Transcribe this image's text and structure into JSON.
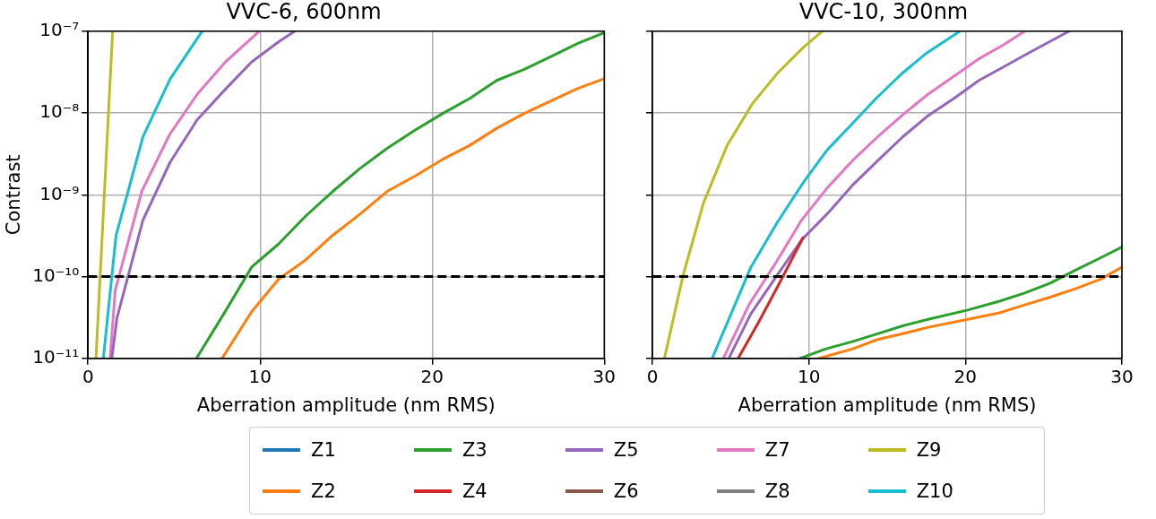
{
  "chart_data": [
    {
      "type": "line",
      "title": "VVC-6, 600nm",
      "xlabel": "Aberration amplitude (nm RMS)",
      "ylabel": "Contrast",
      "xlim": [
        0,
        30
      ],
      "xticks": [
        0,
        10,
        20,
        30
      ],
      "ylim": [
        1e-11,
        1e-07
      ],
      "yticks": [
        {
          "value": 1e-11,
          "label": "10⁻¹¹"
        },
        {
          "value": 1e-10,
          "label": "10⁻¹⁰"
        },
        {
          "value": 1e-09,
          "label": "10⁻⁹"
        },
        {
          "value": 1e-08,
          "label": "10⁻⁸"
        },
        {
          "value": 1e-07,
          "label": "10⁻⁷"
        }
      ],
      "log": "y",
      "grid": true,
      "legend": "bottom",
      "line_style": "solid",
      "marker": "none",
      "ref_lines": [
        {
          "axis": "y",
          "value": 1e-10,
          "color": "#000000",
          "line_style": "dashed"
        }
      ],
      "series": [
        {
          "name": "Z1",
          "color": "#1f77b4"
        },
        {
          "name": "Z2",
          "color": "#ff7f0e",
          "x": [
            7.79,
            9.5,
            11.07,
            12.65,
            14.22,
            15.81,
            17.38,
            19.02,
            20.59,
            22.17,
            23.75,
            25.32,
            26.9,
            28.47,
            29.95
          ],
          "values": [
            1e-11,
            3.7e-11,
            9.3e-11,
            1.6e-10,
            3.2e-10,
            5.8e-10,
            1.1e-09,
            1.7e-09,
            2.7e-09,
            4e-09,
            6.5e-09,
            9.8e-09,
            1.4e-08,
            2e-08,
            2.6e-08
          ]
        },
        {
          "name": "Z3",
          "color": "#2ca02c",
          "x": [
            6.3,
            7.89,
            9.5,
            11.07,
            12.65,
            14.22,
            15.81,
            17.38,
            19.02,
            20.59,
            22.17,
            23.75,
            25.32,
            26.9,
            28.47,
            29.95
          ],
          "values": [
            1e-11,
            3.5e-11,
            1.3e-10,
            2.5e-10,
            5.5e-10,
            1.1e-09,
            2.1e-09,
            3.7e-09,
            6.2e-09,
            9.8e-09,
            1.5e-08,
            2.5e-08,
            3.4e-08,
            4.9e-08,
            7.1e-08,
            9.5e-08
          ]
        },
        {
          "name": "Z4",
          "color": "#d62728"
        },
        {
          "name": "Z5",
          "color": "#9467bd",
          "x": [
            1.38,
            1.68,
            3.19,
            4.77,
            6.35,
            7.93,
            9.5,
            11.14,
            12.02
          ],
          "values": [
            1e-11,
            3.1e-11,
            4.9e-10,
            2.5e-09,
            8.3e-09,
            1.9e-08,
            4.2e-08,
            7.6e-08,
            1e-07
          ]
        },
        {
          "name": "Z6",
          "color": "#8c564b"
        },
        {
          "name": "Z7",
          "color": "#e377c2",
          "x": [
            1.28,
            1.58,
            3.12,
            4.73,
            6.35,
            7.98,
            9.95
          ],
          "values": [
            1e-11,
            6.8e-11,
            1.1e-09,
            5.4e-09,
            1.7e-08,
            4.2e-08,
            1e-07
          ]
        },
        {
          "name": "Z8",
          "color": "#7f7f7f"
        },
        {
          "name": "Z9",
          "color": "#bcbd22",
          "x": [
            0.46,
            1.43
          ],
          "values": [
            1e-11,
            1e-07
          ]
        },
        {
          "name": "Z10",
          "color": "#17becf",
          "x": [
            0.89,
            1.63,
            3.19,
            4.77,
            6.63
          ],
          "values": [
            1e-11,
            3.2e-10,
            5.1e-09,
            2.6e-08,
            1e-07
          ]
        }
      ]
    },
    {
      "type": "line",
      "title": "VVC-10, 300nm",
      "xlabel": "Aberration amplitude (nm RMS)",
      "xlim": [
        0,
        30
      ],
      "xticks": [
        0,
        10,
        20,
        30
      ],
      "ylim": [
        1e-11,
        1e-07
      ],
      "yticks": [
        {
          "value": 1e-11,
          "label": null
        },
        {
          "value": 1e-10,
          "label": null
        },
        {
          "value": 1e-09,
          "label": null
        },
        {
          "value": 1e-08,
          "label": null
        },
        {
          "value": 1e-07,
          "label": null
        }
      ],
      "log": "y",
      "grid": true,
      "tick_labels": "x",
      "line_style": "solid",
      "marker": "none",
      "ref_lines": [
        {
          "axis": "y",
          "value": 1e-10,
          "color": "#000000",
          "line_style": "dashed"
        }
      ],
      "series": [
        {
          "color": "#ff7f0e",
          "x": [
            10.64,
            12.77,
            14.39,
            15.99,
            17.62,
            20.15,
            22.18,
            23.79,
            25.42,
            27.03,
            28.65,
            30
          ],
          "values": [
            1e-11,
            1.3e-11,
            1.7e-11,
            2e-11,
            2.4e-11,
            3e-11,
            3.6e-11,
            4.5e-11,
            5.6e-11,
            7.1e-11,
            9.3e-11,
            1.3e-10
          ]
        },
        {
          "color": "#2ca02c",
          "x": [
            9.43,
            11.05,
            12.77,
            14.39,
            15.99,
            17.62,
            20.15,
            22.18,
            23.79,
            25.42,
            27.03,
            28.65,
            30
          ],
          "values": [
            1e-11,
            1.3e-11,
            1.6e-11,
            2e-11,
            2.5e-11,
            3e-11,
            3.9e-11,
            5e-11,
            6.3e-11,
            8.3e-11,
            1.2e-10,
            1.7e-10,
            2.3e-10
          ]
        },
        {
          "color": "#d62728",
          "x": [
            5.48,
            6.8,
            8.01,
            9.63
          ],
          "values": [
            1e-11,
            2.8e-11,
            7.6e-11,
            3e-10
          ]
        },
        {
          "color": "#9467bd",
          "x": [
            4.88,
            6.29,
            7.91,
            9.53,
            11.15,
            12.77,
            14.39,
            15.99,
            17.62,
            19.25,
            20.86,
            22.48,
            24.1,
            26.63
          ],
          "values": [
            1e-11,
            3.5e-11,
            1e-10,
            2.8e-10,
            5.8e-10,
            1.3e-09,
            2.6e-09,
            5.1e-09,
            9.3e-09,
            1.5e-08,
            2.5e-08,
            3.7e-08,
            5.5e-08,
            1e-07
          ]
        },
        {
          "color": "#e377c2",
          "x": [
            4.53,
            6.19,
            7.91,
            9.53,
            11.15,
            12.77,
            14.39,
            15.99,
            17.62,
            19.25,
            20.86,
            22.48,
            23.79
          ],
          "values": [
            1e-11,
            4.6e-11,
            1.5e-10,
            4.9e-10,
            1.2e-09,
            2.6e-09,
            5.1e-09,
            9.5e-09,
            1.7e-08,
            2.8e-08,
            4.6e-08,
            6.9e-08,
            1e-07
          ]
        },
        {
          "color": "#bcbd22",
          "x": [
            0.77,
            1.94,
            3.26,
            4.77,
            6.39,
            8.01,
            9.63,
            10.85
          ],
          "values": [
            1e-11,
            1e-10,
            7.9e-10,
            4e-09,
            1.3e-08,
            3.1e-08,
            6.3e-08,
            1e-07
          ]
        },
        {
          "color": "#17becf",
          "x": [
            3.82,
            6.29,
            8.01,
            9.63,
            11.15,
            12.77,
            14.28,
            15.91,
            17.52,
            19.65
          ],
          "values": [
            1e-11,
            1.3e-10,
            4.7e-10,
            1.4e-09,
            3.5e-09,
            7.4e-09,
            1.5e-08,
            3e-08,
            5.4e-08,
            1e-07
          ]
        }
      ]
    }
  ]
}
